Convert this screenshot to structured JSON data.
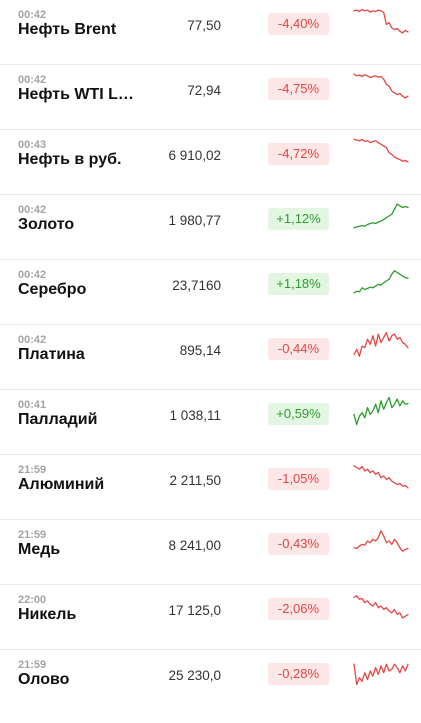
{
  "colors": {
    "down": "#e34646",
    "up": "#2d9d2d",
    "down_bg": "#fde6e6",
    "up_bg": "#e3f6e1"
  },
  "quotes": [
    {
      "time": "00:42",
      "name": "Нефть Brent",
      "price": "77,50",
      "change": "-4,40%",
      "direction": "down",
      "spark": [
        0.2,
        0.18,
        0.22,
        0.16,
        0.2,
        0.18,
        0.24,
        0.2,
        0.22,
        0.18,
        0.2,
        0.25,
        0.6,
        0.55,
        0.7,
        0.75,
        0.72,
        0.8,
        0.85,
        0.78,
        0.82
      ]
    },
    {
      "time": "00:42",
      "name": "Нефть WTI Li…",
      "price": "72,94",
      "change": "-4,75%",
      "direction": "down",
      "spark": [
        0.15,
        0.2,
        0.18,
        0.22,
        0.17,
        0.2,
        0.25,
        0.22,
        0.2,
        0.24,
        0.22,
        0.3,
        0.45,
        0.5,
        0.65,
        0.7,
        0.75,
        0.72,
        0.8,
        0.85,
        0.8
      ]
    },
    {
      "time": "00:43",
      "name": "Нефть в руб.",
      "price": "6 910,02",
      "change": "-4,72%",
      "direction": "down",
      "spark": [
        0.15,
        0.18,
        0.2,
        0.16,
        0.22,
        0.2,
        0.25,
        0.22,
        0.2,
        0.26,
        0.3,
        0.35,
        0.4,
        0.55,
        0.6,
        0.68,
        0.72,
        0.75,
        0.8,
        0.78,
        0.82
      ]
    },
    {
      "time": "00:42",
      "name": "Золото",
      "price": "1 980,77",
      "change": "+1,12%",
      "direction": "up",
      "spark": [
        0.85,
        0.82,
        0.8,
        0.78,
        0.8,
        0.75,
        0.72,
        0.7,
        0.72,
        0.68,
        0.65,
        0.6,
        0.55,
        0.5,
        0.45,
        0.3,
        0.15,
        0.2,
        0.25,
        0.22,
        0.25
      ]
    },
    {
      "time": "00:42",
      "name": "Серебро",
      "price": "23,7160",
      "change": "+1,18%",
      "direction": "up",
      "spark": [
        0.85,
        0.8,
        0.82,
        0.7,
        0.75,
        0.72,
        0.68,
        0.7,
        0.65,
        0.6,
        0.62,
        0.55,
        0.5,
        0.45,
        0.3,
        0.2,
        0.25,
        0.3,
        0.35,
        0.4,
        0.42
      ]
    },
    {
      "time": "00:42",
      "name": "Платина",
      "price": "895,14",
      "change": "-0,44%",
      "direction": "down",
      "spark": [
        0.75,
        0.6,
        0.8,
        0.5,
        0.55,
        0.3,
        0.45,
        0.2,
        0.5,
        0.15,
        0.4,
        0.25,
        0.1,
        0.35,
        0.2,
        0.15,
        0.3,
        0.25,
        0.4,
        0.45,
        0.55
      ]
    },
    {
      "time": "00:41",
      "name": "Палладий",
      "price": "1 038,11",
      "change": "+0,59%",
      "direction": "up",
      "spark": [
        0.6,
        0.9,
        0.65,
        0.55,
        0.7,
        0.4,
        0.6,
        0.5,
        0.3,
        0.55,
        0.2,
        0.45,
        0.25,
        0.1,
        0.4,
        0.3,
        0.15,
        0.35,
        0.2,
        0.3,
        0.28
      ]
    },
    {
      "time": "21:59",
      "name": "Алюминий",
      "price": "2 211,50",
      "change": "-1,05%",
      "direction": "down",
      "spark": [
        0.2,
        0.25,
        0.3,
        0.22,
        0.35,
        0.3,
        0.4,
        0.35,
        0.45,
        0.4,
        0.55,
        0.5,
        0.6,
        0.55,
        0.65,
        0.7,
        0.75,
        0.72,
        0.8,
        0.78,
        0.85
      ]
    },
    {
      "time": "21:59",
      "name": "Медь",
      "price": "8 241,00",
      "change": "-0,43%",
      "direction": "down",
      "spark": [
        0.7,
        0.72,
        0.65,
        0.6,
        0.62,
        0.5,
        0.55,
        0.45,
        0.5,
        0.4,
        0.2,
        0.35,
        0.55,
        0.5,
        0.6,
        0.45,
        0.55,
        0.7,
        0.8,
        0.75,
        0.72
      ]
    },
    {
      "time": "22:00",
      "name": "Никель",
      "price": "17 125,0",
      "change": "-2,06%",
      "direction": "down",
      "spark": [
        0.25,
        0.2,
        0.3,
        0.28,
        0.4,
        0.35,
        0.45,
        0.5,
        0.4,
        0.55,
        0.5,
        0.6,
        0.55,
        0.65,
        0.7,
        0.6,
        0.75,
        0.7,
        0.85,
        0.8,
        0.75
      ]
    },
    {
      "time": "21:59",
      "name": "Олово",
      "price": "25 230,0",
      "change": "-0,28%",
      "direction": "down",
      "spark": [
        0.3,
        0.9,
        0.7,
        0.8,
        0.55,
        0.75,
        0.5,
        0.65,
        0.4,
        0.6,
        0.35,
        0.55,
        0.3,
        0.5,
        0.45,
        0.3,
        0.4,
        0.55,
        0.35,
        0.5,
        0.3
      ]
    }
  ]
}
